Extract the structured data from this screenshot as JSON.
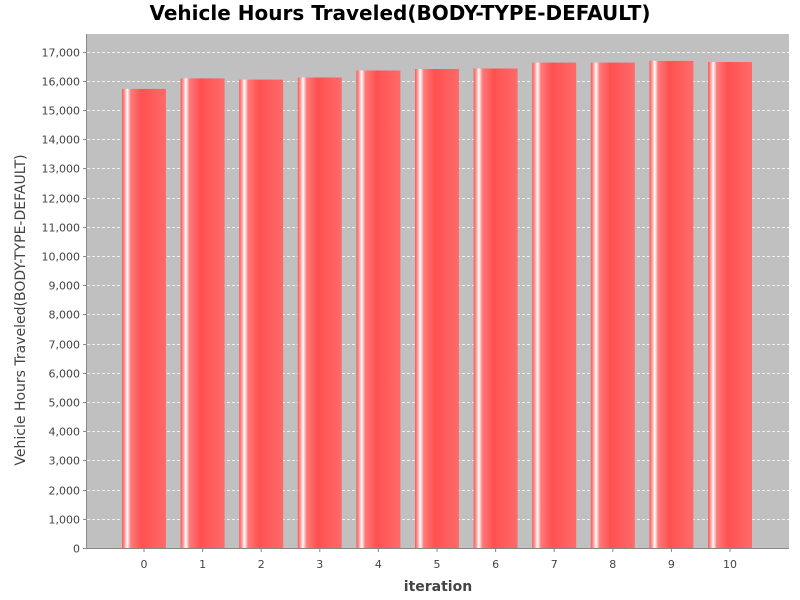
{
  "chart_data": {
    "type": "bar",
    "title": "Vehicle Hours Traveled(BODY-TYPE-DEFAULT)",
    "xlabel": "iteration",
    "ylabel": "Vehicle Hours Traveled(BODY-TYPE-DEFAULT)",
    "categories": [
      "0",
      "1",
      "2",
      "3",
      "4",
      "5",
      "6",
      "7",
      "8",
      "9",
      "10"
    ],
    "values": [
      15720,
      16080,
      16040,
      16110,
      16350,
      16400,
      16420,
      16620,
      16620,
      16680,
      16640
    ],
    "ylim": [
      0,
      17600
    ],
    "yticks": [
      0,
      1000,
      2000,
      3000,
      4000,
      5000,
      6000,
      7000,
      8000,
      9000,
      10000,
      11000,
      12000,
      13000,
      14000,
      15000,
      16000,
      17000
    ],
    "ytick_labels": [
      "0",
      "1,000",
      "2,000",
      "3,000",
      "4,000",
      "5,000",
      "6,000",
      "7,000",
      "8,000",
      "9,000",
      "10,000",
      "11,000",
      "12,000",
      "13,000",
      "14,000",
      "15,000",
      "16,000",
      "17,000"
    ],
    "grid": true,
    "colors": {
      "bar": "#ff5555",
      "bar_highlight": "#ffffff",
      "plot_background": "#c0c0c0",
      "gridline": "#ffffff",
      "axis": "#888888"
    }
  }
}
